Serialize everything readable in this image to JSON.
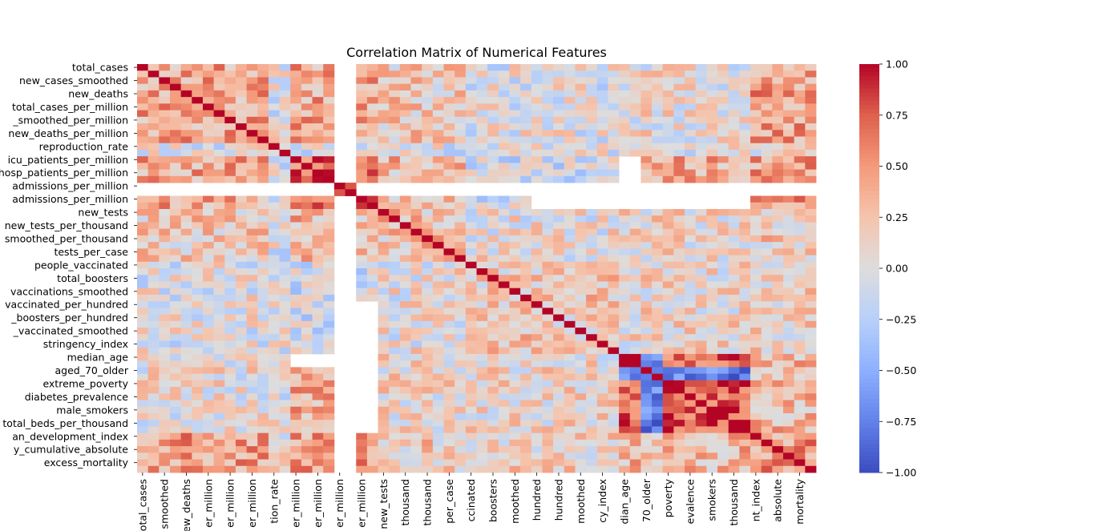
{
  "chart_data": {
    "type": "heatmap",
    "title": "Correlation Matrix of Numerical Features",
    "row_labels": [
      "total_cases",
      "",
      "new_cases_smoothed",
      "",
      "new_deaths",
      "",
      "total_cases_per_million",
      "",
      "new_cases_smoothed_per_million",
      "",
      "new_deaths_per_million",
      "",
      "reproduction_rate",
      "",
      "icu_patients_per_million",
      "",
      "hosp_patients_per_million",
      "",
      "weekly_icu_admissions_per_million",
      "",
      "weekly_hosp_admissions_per_million",
      "",
      "new_tests",
      "",
      "new_tests_per_thousand",
      "",
      "new_tests_smoothed_per_thousand",
      "",
      "tests_per_case",
      "",
      "people_vaccinated",
      "",
      "total_boosters",
      "",
      "new_vaccinations_smoothed",
      "",
      "people_fully_vaccinated_per_hundred",
      "",
      "total_boosters_per_hundred",
      "",
      "new_people_vaccinated_smoothed",
      "",
      "stringency_index",
      "",
      "median_age",
      "",
      "aged_70_older",
      "",
      "extreme_poverty",
      "",
      "diabetes_prevalence",
      "",
      "male_smokers",
      "",
      "hospital_beds_per_thousand",
      "",
      "human_development_index",
      "",
      "excess_mortality_cumulative_absolute",
      "",
      "excess_mortality",
      ""
    ],
    "col_labels": [
      "total_cases",
      "",
      "new_cases_smoothed",
      "",
      "new_deaths",
      "",
      "total_cases_per_million",
      "",
      "new_cases_smoothed_per_million",
      "",
      "new_deaths_per_million",
      "",
      "reproduction_rate",
      "",
      "icu_patients_per_million",
      "",
      "hosp_patients_per_million",
      "",
      "weekly_icu_admissions_per_million",
      "",
      "weekly_hosp_admissions_per_million",
      "",
      "new_tests",
      "",
      "new_tests_per_thousand",
      "",
      "new_tests_smoothed_per_thousand",
      "",
      "tests_per_case",
      "",
      "people_vaccinated",
      "",
      "total_boosters",
      "",
      "new_vaccinations_smoothed",
      "",
      "people_fully_vaccinated_per_hundred",
      "",
      "total_boosters_per_hundred",
      "",
      "new_people_vaccinated_smoothed",
      "",
      "stringency_index",
      "",
      "median_age",
      "",
      "aged_70_older",
      "",
      "extreme_poverty",
      "",
      "diabetes_prevalence",
      "",
      "male_smokers",
      "",
      "hospital_beds_per_thousand",
      "",
      "human_development_index",
      "",
      "excess_mortality_cumulative_absolute",
      "",
      "excess_mortality",
      ""
    ],
    "visible_row_labels": [
      "total_cases",
      "new_cases_smoothed",
      "new_deaths",
      "total_cases_per_million",
      "_smoothed_per_million",
      "new_deaths_per_million",
      "reproduction_rate",
      "icu_patients_per_million",
      "hosp_patients_per_million",
      "admissions_per_million",
      "admissions_per_million",
      "new_tests",
      "new_tests_per_thousand",
      "smoothed_per_thousand",
      "tests_per_case",
      "people_vaccinated",
      "total_boosters",
      "vaccinations_smoothed",
      "vaccinated_per_hundred",
      "_boosters_per_hundred",
      "_vaccinated_smoothed",
      "stringency_index",
      "median_age",
      "aged_70_older",
      "extreme_poverty",
      "diabetes_prevalence",
      "male_smokers",
      "total_beds_per_thousand",
      "an_development_index",
      "y_cumulative_absolute",
      "excess_mortality"
    ],
    "visible_col_labels": [
      "total_cases",
      "smoothed",
      "new_deaths",
      "er_million",
      "er_million",
      "er_million",
      "tion_rate",
      "er_million",
      "er_million",
      "er_million",
      "er_million",
      "new_tests",
      "thousand",
      "thousand",
      "per_case",
      "ccinated",
      "boosters",
      "moothed",
      "hundred",
      "hundred",
      "moothed",
      "cy_index",
      "dian_age",
      "70_older",
      "poverty",
      "evalence",
      "smokers",
      "thousand",
      "nt_index",
      "absolute",
      "mortality"
    ],
    "colorbar": {
      "min": -1.0,
      "max": 1.0,
      "ticks": [
        "1.00",
        "0.75",
        "0.50",
        "0.25",
        "0.00",
        "−0.25",
        "−0.50",
        "−0.75",
        "−1.00"
      ],
      "colormap": "coolwarm"
    },
    "colors": {
      "low": "#3b4cc0",
      "mid": "#dddddd",
      "high": "#b40426",
      "missing": "#ffffff"
    }
  }
}
